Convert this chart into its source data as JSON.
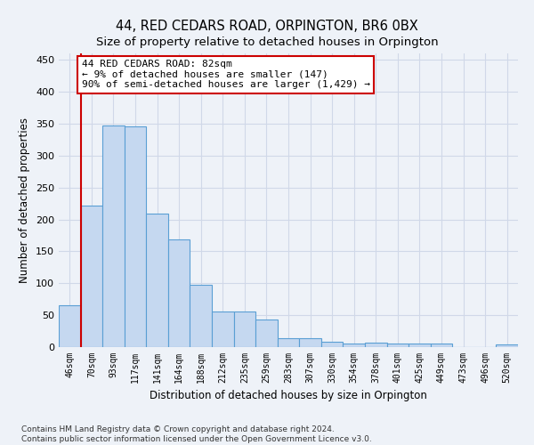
{
  "title": "44, RED CEDARS ROAD, ORPINGTON, BR6 0BX",
  "subtitle": "Size of property relative to detached houses in Orpington",
  "xlabel": "Distribution of detached houses by size in Orpington",
  "ylabel": "Number of detached properties",
  "bar_labels": [
    "46sqm",
    "70sqm",
    "93sqm",
    "117sqm",
    "141sqm",
    "164sqm",
    "188sqm",
    "212sqm",
    "235sqm",
    "259sqm",
    "283sqm",
    "307sqm",
    "330sqm",
    "354sqm",
    "378sqm",
    "401sqm",
    "425sqm",
    "449sqm",
    "473sqm",
    "496sqm",
    "520sqm"
  ],
  "bar_values": [
    65,
    222,
    347,
    346,
    209,
    168,
    98,
    56,
    56,
    43,
    14,
    14,
    8,
    6,
    7,
    6,
    5,
    5,
    0,
    0,
    4
  ],
  "bar_color": "#c5d8f0",
  "bar_edge_color": "#5a9fd4",
  "grid_color": "#d0d8e8",
  "background_color": "#eef2f8",
  "vline_x": 0.5,
  "vline_color": "#cc0000",
  "annotation_text": "44 RED CEDARS ROAD: 82sqm\n← 9% of detached houses are smaller (147)\n90% of semi-detached houses are larger (1,429) →",
  "annotation_box_color": "#ffffff",
  "annotation_border_color": "#cc0000",
  "ylim": [
    0,
    460
  ],
  "yticks": [
    0,
    50,
    100,
    150,
    200,
    250,
    300,
    350,
    400,
    450
  ],
  "footnote": "Contains HM Land Registry data © Crown copyright and database right 2024.\nContains public sector information licensed under the Open Government Licence v3.0.",
  "title_fontsize": 10.5,
  "subtitle_fontsize": 9.5,
  "annotation_fontsize": 8,
  "footnote_fontsize": 6.5
}
